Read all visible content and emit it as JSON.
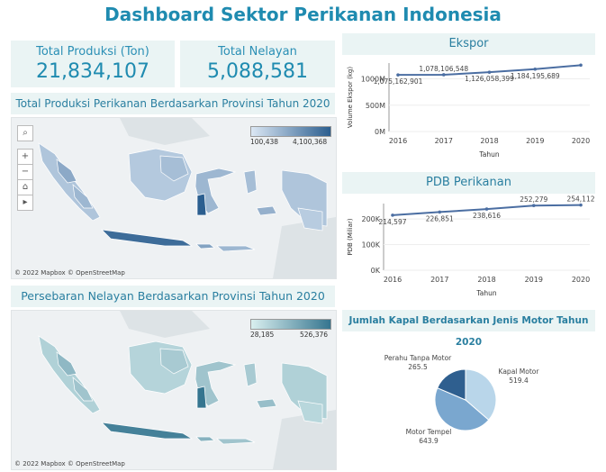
{
  "title": "Dashboard Sektor Perikanan Indonesia",
  "kpi": [
    {
      "label": "Total Produksi (Ton)",
      "value": "21,834,107"
    },
    {
      "label": "Total Nelayan",
      "value": "5,088,581"
    }
  ],
  "map1": {
    "title": "Total Produksi Perikanan Berdasarkan Provinsi Tahun 2020",
    "legend_min": "100,438",
    "legend_max": "4,100,368",
    "copyright": "© 2022 Mapbox  © OpenStreetMap",
    "colors": {
      "low": "#dbe7f4",
      "high": "#2b5e8f",
      "highlight": "#2e5f8e"
    }
  },
  "map2": {
    "title": "Persebaran Nelayan Berdasarkan Provinsi Tahun 2020",
    "legend_min": "28,185",
    "legend_max": "526,376",
    "copyright": "© 2022 Mapbox  © OpenStreetMap",
    "colors": {
      "low": "#d9efef",
      "high": "#35758f",
      "highlight": "#34648a"
    }
  },
  "map_tools": [
    "search-icon",
    "zoom-in-icon",
    "zoom-out-icon",
    "home-icon",
    "play-icon"
  ],
  "chart_data": [
    {
      "type": "line",
      "title": "Ekspor",
      "xlabel": "Tahun",
      "ylabel": "Volume Ekspor (kg)",
      "x": [
        2016,
        2017,
        2018,
        2019,
        2020
      ],
      "values": [
        1075162901,
        1078106548,
        1126058399,
        1184195689,
        1260000000
      ],
      "data_labels": [
        "1,075,162,901",
        "1,078,106,548",
        "1,126,058,399",
        "1,184,195,689",
        ""
      ],
      "ylim": [
        0,
        1300000000
      ],
      "yticks": [
        0,
        500000000,
        1000000000
      ],
      "ytick_labels": [
        "0M",
        "500M",
        "1000M"
      ],
      "color": "#4b6ea2",
      "grid": true
    },
    {
      "type": "line",
      "title": "PDB Perikanan",
      "xlabel": "Tahun",
      "ylabel": "PDB (Miliar)",
      "x": [
        2016,
        2017,
        2018,
        2019,
        2020
      ],
      "values": [
        214597,
        226851,
        238616,
        252279,
        254112
      ],
      "data_labels": [
        "214,597",
        "226,851",
        "238,616",
        "252,279",
        "254,112"
      ],
      "ylim": [
        0,
        260000
      ],
      "yticks": [
        0,
        100000,
        200000
      ],
      "ytick_labels": [
        "0K",
        "100K",
        "200K"
      ],
      "color": "#4b6ea2",
      "grid": true
    },
    {
      "type": "pie",
      "title": "Jumlah Kapal Berdasarkan Jenis Motor Tahun 2020",
      "categories": [
        "Kapal Motor",
        "Motor Tempel",
        "Perahu Tanpa Motor"
      ],
      "values": [
        519.4,
        643.9,
        265.5
      ],
      "value_labels": [
        "519.4",
        "643.9",
        "265.5"
      ],
      "colors": [
        "#b9d6ea",
        "#7aa7cf",
        "#2f5f8f"
      ]
    }
  ]
}
